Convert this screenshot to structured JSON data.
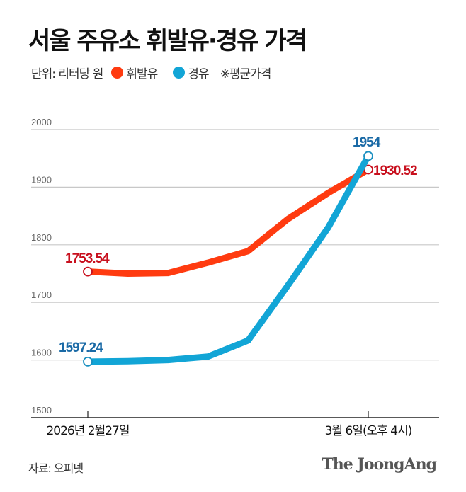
{
  "title": "서울 주유소 휘발유·경유 가격",
  "legend": {
    "unit": "단위: 리터당 원",
    "note": "※평균가격"
  },
  "source": "자료: 오피넷",
  "logo": "The JoongAng",
  "chart_data": {
    "type": "line",
    "ylim": [
      1500,
      2000
    ],
    "yticks": [
      "1500",
      "1600",
      "1700",
      "1800",
      "1900",
      "2000"
    ],
    "grid": true,
    "x_labels": [
      "2026년 2월27일",
      "3월 6일(오후 4시)"
    ],
    "series": [
      {
        "name": "휘발유",
        "color": "#ff3b10",
        "label_color": "#c8101e",
        "values": [
          1753.54,
          1750,
          1751,
          1769,
          1789,
          1845,
          1890,
          1930.52
        ],
        "labels": [
          "1753.54",
          "1930.52"
        ]
      },
      {
        "name": "경유",
        "color": "#12a5d6",
        "label_color": "#1a6aa6",
        "values": [
          1597.24,
          1598,
          1600,
          1606,
          1634,
          1730,
          1830,
          1954
        ],
        "labels": [
          "1597.24",
          "1954"
        ]
      }
    ]
  }
}
